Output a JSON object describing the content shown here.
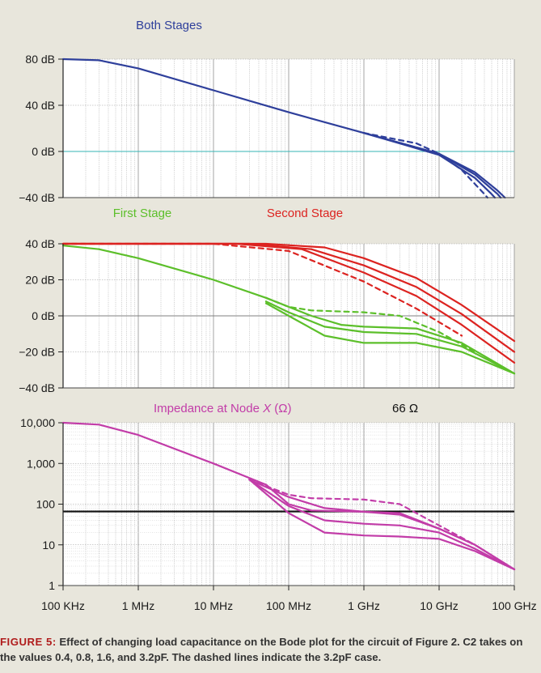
{
  "chart_data": [
    {
      "type": "line",
      "title": "Both Stages",
      "title_color": "#2e3f9b",
      "xscale": "log",
      "xlim": [
        100000,
        100000000000
      ],
      "ylim": [
        -40,
        80
      ],
      "yticks": [
        80,
        40,
        0,
        -40
      ],
      "ytick_labels": [
        "80 dB",
        "40 dB",
        "0 dB",
        "−40 dB"
      ],
      "reference_line": {
        "y": 0,
        "color": "#35b5b5"
      },
      "series": [
        {
          "color": "#2e3f9b",
          "style": "solid",
          "points": [
            [
              100000,
              80
            ],
            [
              300000,
              79
            ],
            [
              1000000,
              72
            ],
            [
              10000000,
              53
            ],
            [
              100000000,
              34
            ],
            [
              1000000000,
              16
            ],
            [
              10000000000,
              -2
            ],
            [
              30000000000,
              -18
            ],
            [
              60000000000,
              -34
            ],
            [
              75000000000,
              -40
            ]
          ]
        },
        {
          "color": "#2e3f9b",
          "style": "solid",
          "points": [
            [
              1000000000,
              16
            ],
            [
              10000000000,
              -2
            ],
            [
              30000000000,
              -20
            ],
            [
              60000000000,
              -37
            ],
            [
              66000000000,
              -40
            ]
          ]
        },
        {
          "color": "#2e3f9b",
          "style": "solid",
          "points": [
            [
              1000000000,
              16
            ],
            [
              10000000000,
              -3
            ],
            [
              30000000000,
              -23
            ],
            [
              50000000000,
              -37
            ],
            [
              55000000000,
              -40
            ]
          ]
        },
        {
          "color": "#2e3f9b",
          "style": "dashed",
          "points": [
            [
              1000000000,
              16
            ],
            [
              5000000000,
              7
            ],
            [
              10000000000,
              -2
            ],
            [
              20000000000,
              -16
            ],
            [
              40000000000,
              -37
            ],
            [
              44000000000,
              -40
            ]
          ]
        }
      ]
    },
    {
      "type": "line",
      "titles": [
        {
          "text": "First Stage",
          "color": "#5cbf2a"
        },
        {
          "text": "Second Stage",
          "color": "#dc2320"
        }
      ],
      "xscale": "log",
      "xlim": [
        100000,
        100000000000
      ],
      "ylim": [
        -40,
        40
      ],
      "yticks": [
        40,
        20,
        0,
        -20,
        -40
      ],
      "ytick_labels": [
        "40 dB",
        "20 dB",
        "0 dB",
        "−20 dB",
        "−40 dB"
      ],
      "reference_line": {
        "y": 0,
        "color": "#808080"
      },
      "series": [
        {
          "color": "#dc2320",
          "style": "solid",
          "points": [
            [
              100000,
              40
            ],
            [
              50000000,
              40
            ],
            [
              300000000,
              38
            ],
            [
              1000000000,
              32
            ],
            [
              5000000000,
              21
            ],
            [
              20000000000,
              6
            ],
            [
              100000000000,
              -14
            ]
          ]
        },
        {
          "color": "#dc2320",
          "style": "solid",
          "points": [
            [
              100000,
              40
            ],
            [
              30000000,
              40
            ],
            [
              200000000,
              37
            ],
            [
              1000000000,
              28
            ],
            [
              5000000000,
              16
            ],
            [
              20000000000,
              1
            ],
            [
              100000000000,
              -20
            ]
          ]
        },
        {
          "color": "#dc2320",
          "style": "solid",
          "points": [
            [
              100000,
              40
            ],
            [
              20000000,
              40
            ],
            [
              150000000,
              37
            ],
            [
              1000000000,
              24
            ],
            [
              5000000000,
              11
            ],
            [
              20000000000,
              -5
            ],
            [
              100000000000,
              -26
            ]
          ]
        },
        {
          "color": "#dc2320",
          "style": "dashed",
          "points": [
            [
              100000,
              40
            ],
            [
              10000000,
              40
            ],
            [
              100000000,
              36
            ],
            [
              1000000000,
              19
            ],
            [
              5000000000,
              4
            ],
            [
              20000000000,
              -11
            ]
          ]
        },
        {
          "color": "#5cbf2a",
          "style": "solid",
          "points": [
            [
              100000,
              39
            ],
            [
              300000,
              37
            ],
            [
              1000000,
              32
            ],
            [
              10000000,
              20
            ],
            [
              50000000,
              10
            ],
            [
              100000000,
              5
            ],
            [
              200000000,
              0
            ],
            [
              500000000,
              -5
            ],
            [
              1000000000,
              -6
            ],
            [
              5000000000,
              -7
            ],
            [
              20000000000,
              -15
            ],
            [
              100000000000,
              -32
            ]
          ]
        },
        {
          "color": "#5cbf2a",
          "style": "solid",
          "points": [
            [
              50000000,
              8
            ],
            [
              100000000,
              2
            ],
            [
              300000000,
              -6
            ],
            [
              1000000000,
              -9
            ],
            [
              5000000000,
              -10
            ],
            [
              20000000000,
              -17
            ],
            [
              100000000000,
              -32
            ]
          ]
        },
        {
          "color": "#5cbf2a",
          "style": "solid",
          "points": [
            [
              50000000,
              7
            ],
            [
              100000000,
              0
            ],
            [
              300000000,
              -11
            ],
            [
              1000000000,
              -15
            ],
            [
              5000000000,
              -15
            ],
            [
              20000000000,
              -20
            ],
            [
              100000000000,
              -32
            ]
          ]
        },
        {
          "color": "#5cbf2a",
          "style": "dashed",
          "points": [
            [
              50000000,
              10
            ],
            [
              100000000,
              5
            ],
            [
              200000000,
              3
            ],
            [
              1000000000,
              2
            ],
            [
              3000000000,
              0
            ],
            [
              10000000000,
              -9
            ],
            [
              30000000000,
              -20
            ]
          ]
        }
      ]
    },
    {
      "type": "line",
      "title": "Impedance at Node",
      "title_var": "X",
      "title_unit": "(Ω)",
      "annotation": "66 Ω",
      "title_color": "#c23ca8",
      "xscale": "log",
      "yscale": "log",
      "xlim": [
        100000,
        100000000000
      ],
      "ylim": [
        1,
        10000
      ],
      "yticks": [
        10000,
        1000,
        100,
        10,
        1
      ],
      "ytick_labels": [
        "10,000",
        "1,000",
        "100",
        "10",
        "1"
      ],
      "reference_line": {
        "y": 66,
        "color": "#111111"
      },
      "xtick_labels": [
        "100 KHz",
        "1 MHz",
        "10 MHz",
        "100 MHz",
        "1 GHz",
        "10 GHz",
        "100 GHz"
      ],
      "series": [
        {
          "color": "#c23ca8",
          "style": "solid",
          "points": [
            [
              100000,
              10000
            ],
            [
              300000,
              9000
            ],
            [
              1000000,
              5000
            ],
            [
              10000000,
              1000
            ],
            [
              50000000,
              300
            ],
            [
              100000000,
              100
            ],
            [
              200000000,
              70
            ],
            [
              1000000000,
              65
            ],
            [
              3000000000,
              60
            ],
            [
              10000000000,
              25
            ],
            [
              30000000000,
              10
            ],
            [
              100000000000,
              2.5
            ]
          ]
        },
        {
          "color": "#c23ca8",
          "style": "solid",
          "points": [
            [
              30000000,
              400
            ],
            [
              100000000,
              150
            ],
            [
              300000000,
              80
            ],
            [
              1000000000,
              65
            ],
            [
              3000000000,
              55
            ],
            [
              10000000000,
              25
            ],
            [
              30000000000,
              10
            ],
            [
              100000000000,
              2.5
            ]
          ]
        },
        {
          "color": "#c23ca8",
          "style": "solid",
          "points": [
            [
              30000000,
              400
            ],
            [
              100000000,
              90
            ],
            [
              300000000,
              40
            ],
            [
              1000000000,
              33
            ],
            [
              3000000000,
              30
            ],
            [
              10000000000,
              20
            ],
            [
              30000000000,
              8
            ],
            [
              100000000000,
              2.5
            ]
          ]
        },
        {
          "color": "#c23ca8",
          "style": "solid",
          "points": [
            [
              30000000,
              400
            ],
            [
              100000000,
              60
            ],
            [
              300000000,
              20
            ],
            [
              1000000000,
              17
            ],
            [
              3000000000,
              16
            ],
            [
              10000000000,
              14
            ],
            [
              30000000000,
              7
            ],
            [
              100000000000,
              2.5
            ]
          ]
        },
        {
          "color": "#c23ca8",
          "style": "dashed",
          "points": [
            [
              30000000,
              400
            ],
            [
              100000000,
              170
            ],
            [
              200000000,
              140
            ],
            [
              1000000000,
              130
            ],
            [
              3000000000,
              100
            ],
            [
              10000000000,
              30
            ],
            [
              30000000000,
              10
            ]
          ]
        }
      ]
    }
  ],
  "caption": {
    "label": "FIGURE 5:",
    "text": " Effect of changing load capacitance on the Bode plot for the circuit of Figure 2. C2 takes on the values 0.4, 0.8, 1.6, and 3.2pF. The dashed lines indicate the 3.2pF case."
  }
}
